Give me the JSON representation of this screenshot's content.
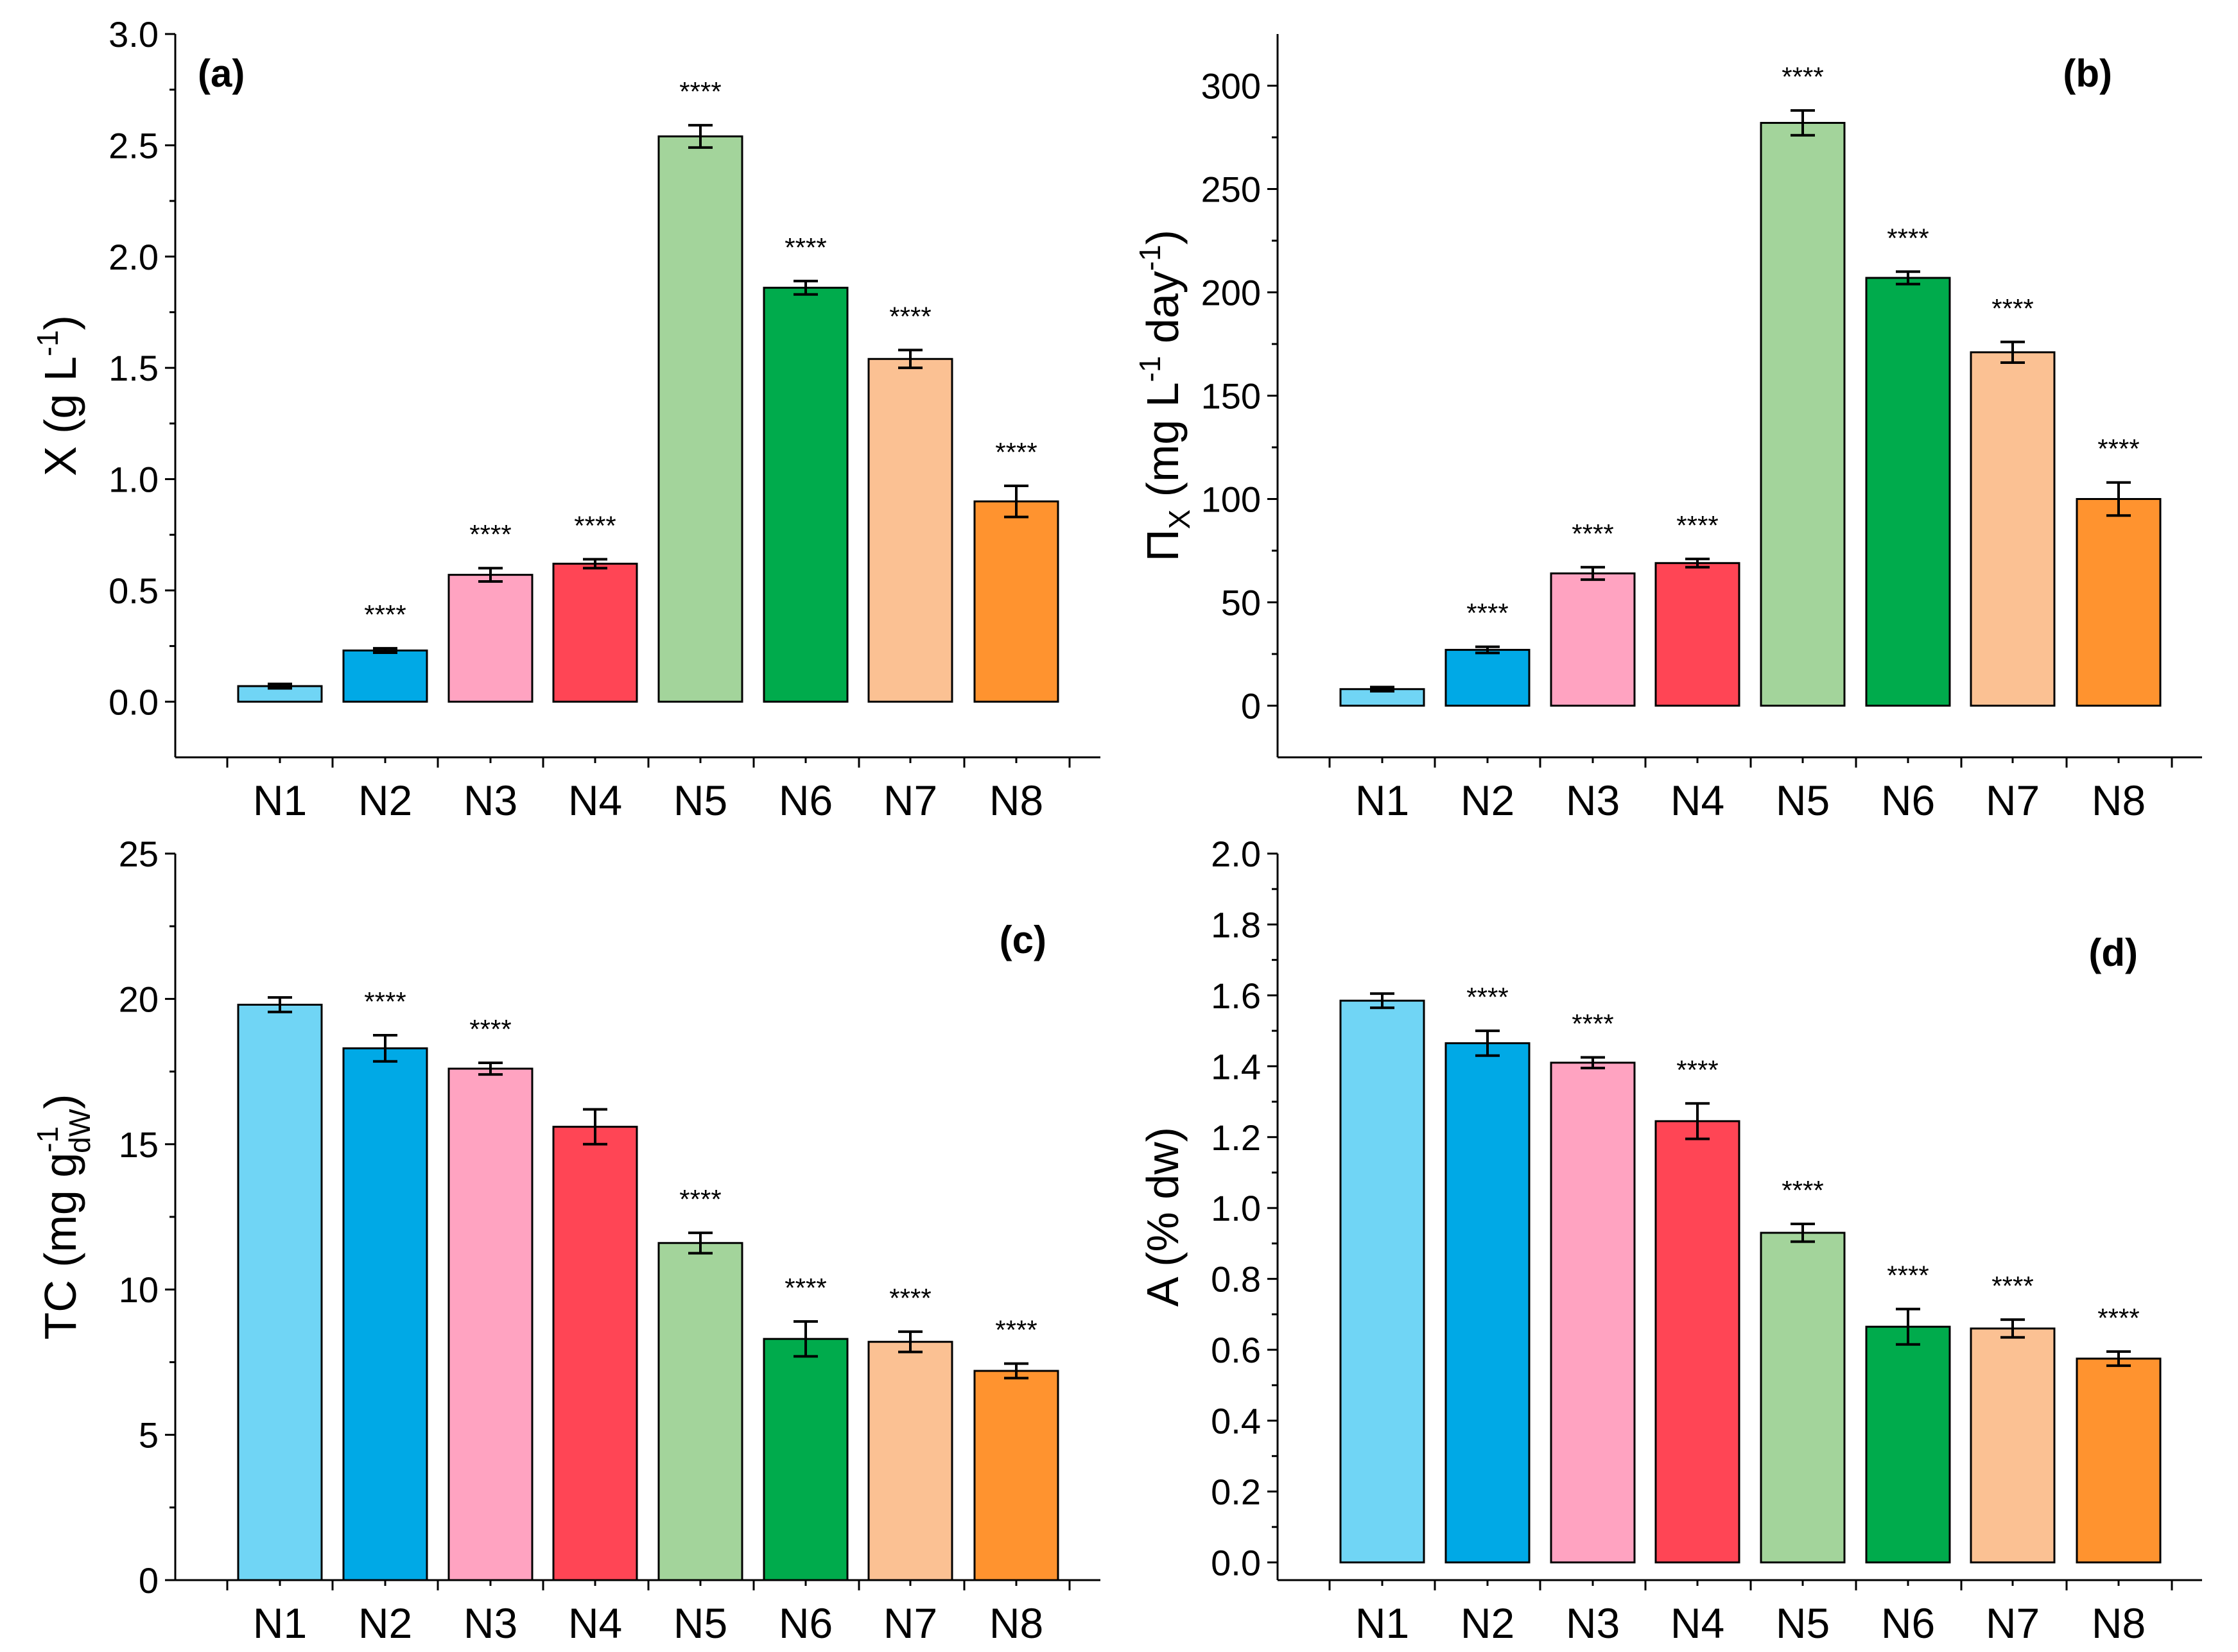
{
  "chart_data": [
    {
      "type": "bar",
      "panel_label": "(a)",
      "ylabel": {
        "main": "X (g L",
        "sup": "-1",
        "tail": ")"
      },
      "categories": [
        "N1",
        "N2",
        "N3",
        "N4",
        "N5",
        "N6",
        "N7",
        "N8"
      ],
      "values": [
        0.07,
        0.23,
        0.57,
        0.62,
        2.54,
        1.86,
        1.54,
        0.9
      ],
      "errors": [
        0.01,
        0.01,
        0.03,
        0.02,
        0.05,
        0.03,
        0.04,
        0.07
      ],
      "significance": [
        "",
        "****",
        "****",
        "****",
        "****",
        "****",
        "****",
        "****"
      ],
      "ylim": [
        -0.25,
        3.0
      ],
      "yticks": [
        0.0,
        0.5,
        1.0,
        1.5,
        2.0,
        2.5,
        3.0
      ],
      "ytick_labels": [
        "0.0",
        "0.5",
        "1.0",
        "1.5",
        "2.0",
        "2.5",
        "3.0"
      ],
      "colors": [
        "#70d5f5",
        "#00a9e6",
        "#ffa3c1",
        "#ff4555",
        "#a3d49b",
        "#00ab4c",
        "#fbc193",
        "#ff932f"
      ]
    },
    {
      "type": "bar",
      "panel_label": "(b)",
      "ylabel": {
        "main": "Π",
        "sub": "X",
        "mid": " (mg L",
        "sup1": "-1",
        "mid2": " day",
        "sup2": "-1",
        "tail": ")"
      },
      "categories": [
        "N1",
        "N2",
        "N3",
        "N4",
        "N5",
        "N6",
        "N7",
        "N8"
      ],
      "values": [
        8,
        27,
        64,
        69,
        282,
        207,
        171,
        100
      ],
      "errors": [
        1,
        1.5,
        3,
        2,
        6,
        3,
        5,
        8
      ],
      "significance": [
        "",
        "****",
        "****",
        "****",
        "****",
        "****",
        "****",
        "****"
      ],
      "ylim": [
        -25,
        325
      ],
      "yticks": [
        0,
        50,
        100,
        150,
        200,
        250,
        300
      ],
      "ytick_labels": [
        "0",
        "50",
        "100",
        "150",
        "200",
        "250",
        "300"
      ],
      "colors": [
        "#70d5f5",
        "#00a9e6",
        "#ffa3c1",
        "#ff4555",
        "#a3d49b",
        "#00ab4c",
        "#fbc193",
        "#ff932f"
      ]
    },
    {
      "type": "bar",
      "panel_label": "(c)",
      "ylabel": {
        "main": "TC (mg g",
        "sup": "-1",
        "sub": "dW",
        "tail": ")"
      },
      "categories": [
        "N1",
        "N2",
        "N3",
        "N4",
        "N5",
        "N6",
        "N7",
        "N8"
      ],
      "values": [
        19.8,
        18.3,
        17.6,
        15.6,
        11.6,
        8.3,
        8.2,
        7.2
      ],
      "errors": [
        0.25,
        0.45,
        0.2,
        0.6,
        0.35,
        0.6,
        0.35,
        0.25
      ],
      "significance": [
        "",
        "****",
        "****",
        "",
        "****",
        "****",
        "****",
        "****"
      ],
      "ylim": [
        0,
        25
      ],
      "yticks": [
        0,
        5,
        10,
        15,
        20,
        25
      ],
      "ytick_labels": [
        "0",
        "5",
        "10",
        "15",
        "20",
        "25"
      ],
      "colors": [
        "#70d5f5",
        "#00a9e6",
        "#ffa3c1",
        "#ff4555",
        "#a3d49b",
        "#00ab4c",
        "#fbc193",
        "#ff932f"
      ]
    },
    {
      "type": "bar",
      "panel_label": "(d)",
      "ylabel": {
        "main": "A (% dw)"
      },
      "categories": [
        "N1",
        "N2",
        "N3",
        "N4",
        "N5",
        "N6",
        "N7",
        "N8"
      ],
      "values": [
        1.585,
        1.465,
        1.41,
        1.245,
        0.93,
        0.665,
        0.66,
        0.575
      ],
      "errors": [
        0.02,
        0.035,
        0.015,
        0.05,
        0.025,
        0.05,
        0.025,
        0.02
      ],
      "significance": [
        "",
        "****",
        "****",
        "****",
        "****",
        "****",
        "****",
        "****"
      ],
      "ylim": [
        -0.05,
        2.0
      ],
      "yticks": [
        0.0,
        0.2,
        0.4,
        0.6,
        0.8,
        1.0,
        1.2,
        1.4,
        1.6,
        1.8,
        2.0
      ],
      "ytick_labels": [
        "0.0",
        "0.2",
        "0.4",
        "0.6",
        "0.8",
        "1.0",
        "1.2",
        "1.4",
        "1.6",
        "1.8",
        "2.0"
      ],
      "colors": [
        "#70d5f5",
        "#00a9e6",
        "#ffa3c1",
        "#ff4555",
        "#a3d49b",
        "#00ab4c",
        "#fbc193",
        "#ff932f"
      ]
    }
  ]
}
